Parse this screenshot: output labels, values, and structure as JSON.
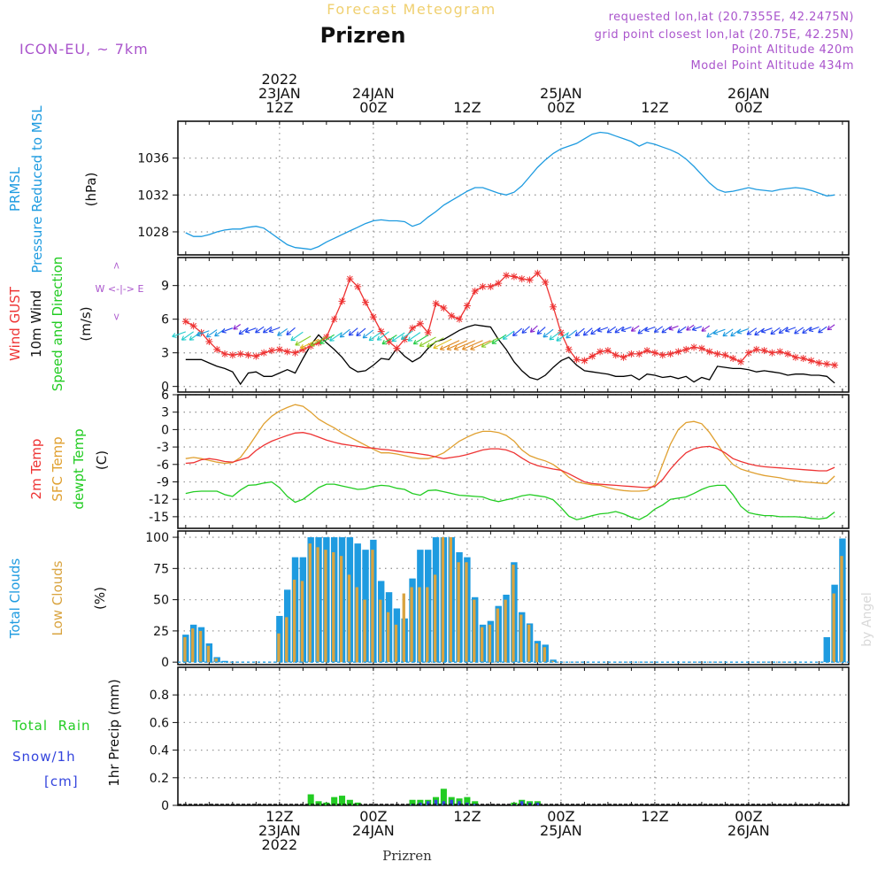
{
  "header": {
    "forecast_title": "Forecast Meteogram",
    "city": "Prizren",
    "model": "ICON-EU, ~ 7km",
    "requested": "requested lon,lat (20.7355E, 42.2475N)",
    "grid_point": "grid point closest lon,lat (20.75E, 42.25N)",
    "point_altitude": "Point Altitude 420m",
    "model_altitude": "Model Point Altitude 434m",
    "footer_city": "Prizren",
    "watermark": "by Angel"
  },
  "colors": {
    "pressure": "#1e9be0",
    "gust": "#ee3333",
    "wind": "#000000",
    "temp": "#ee3333",
    "sfc": "#e0a030",
    "dewpt": "#22cc22",
    "total_clouds": "#1e9be0",
    "low_clouds": "#d9a440",
    "rain": "#22cc22",
    "snow": "#3344dd",
    "purple": "#aa55cc"
  },
  "time_axis": {
    "top": [
      {
        "hour": 12,
        "lines": [
          "2022",
          "23JAN",
          "12Z"
        ]
      },
      {
        "hour": 24,
        "lines": [
          "24JAN",
          "00Z"
        ]
      },
      {
        "hour": 36,
        "lines": [
          "12Z"
        ]
      },
      {
        "hour": 48,
        "lines": [
          "25JAN",
          "00Z"
        ]
      },
      {
        "hour": 60,
        "lines": [
          "12Z"
        ]
      },
      {
        "hour": 72,
        "lines": [
          "26JAN",
          "00Z"
        ]
      }
    ],
    "bottom": [
      {
        "hour": 12,
        "lines": [
          "12Z",
          "23JAN",
          "2022"
        ]
      },
      {
        "hour": 24,
        "lines": [
          "00Z",
          "24JAN"
        ]
      },
      {
        "hour": 36,
        "lines": [
          "12Z"
        ]
      },
      {
        "hour": 48,
        "lines": [
          "00Z",
          "25JAN"
        ]
      },
      {
        "hour": 60,
        "lines": [
          "12Z"
        ]
      },
      {
        "hour": 72,
        "lines": [
          "00Z",
          "26JAN"
        ]
      }
    ]
  },
  "chart_data": [
    {
      "type": "line",
      "panel": "pressure",
      "labels": {
        "name1": "PRMSL",
        "name2": "Pressure Reduced to MSL",
        "unit": "(hPa)"
      },
      "x_start_hour": 0,
      "x_step_hours": 1,
      "ylim": [
        1025.5,
        1040
      ],
      "yticks": [
        1028,
        1032,
        1036
      ],
      "series": [
        {
          "values": [
            1027.9,
            1027.5,
            1027.5,
            1027.7,
            1028.0,
            1028.2,
            1028.3,
            1028.3,
            1028.5,
            1028.6,
            1028.4,
            1027.8,
            1027.2,
            1026.6,
            1026.3,
            1026.2,
            1026.1,
            1026.4,
            1026.9,
            1027.3,
            1027.7,
            1028.1,
            1028.5,
            1028.9,
            1029.2,
            1029.3,
            1029.2,
            1029.2,
            1029.1,
            1028.6,
            1028.9,
            1029.6,
            1030.2,
            1030.9,
            1031.4,
            1031.9,
            1032.4,
            1032.8,
            1032.8,
            1032.5,
            1032.2,
            1032.0,
            1032.3,
            1033.0,
            1034.0,
            1035.0,
            1035.8,
            1036.5,
            1037.0,
            1037.3,
            1037.6,
            1038.1,
            1038.6,
            1038.8,
            1038.7,
            1038.4,
            1038.1,
            1037.8,
            1037.3,
            1037.7,
            1037.5,
            1037.2,
            1036.9,
            1036.5,
            1035.9,
            1035.1,
            1034.2,
            1033.3,
            1032.6,
            1032.3,
            1032.4,
            1032.6,
            1032.8,
            1032.6,
            1032.5,
            1032.4,
            1032.6,
            1032.7,
            1032.8,
            1032.7,
            1032.5,
            1032.2,
            1031.9,
            1032.0
          ]
        }
      ]
    },
    {
      "type": "line",
      "panel": "wind",
      "labels": {
        "name1": "Wind GUST",
        "name2": "10m Wind",
        "name3": "Speed and Direction",
        "unit": "(m/s)",
        "compass": "N W <-|-> E S"
      },
      "x_start_hour": 0,
      "x_step_hours": 1,
      "ylim": [
        -0.5,
        11.5
      ],
      "yticks": [
        0,
        3,
        6,
        9
      ],
      "series": [
        {
          "name": "Wind GUST",
          "values": [
            5.8,
            5.4,
            4.8,
            4.0,
            3.3,
            2.9,
            2.8,
            2.9,
            2.8,
            2.7,
            3.0,
            3.2,
            3.3,
            3.1,
            3.0,
            3.3,
            3.6,
            3.9,
            4.4,
            6.0,
            7.6,
            9.6,
            8.9,
            7.5,
            6.2,
            4.9,
            4.0,
            3.4,
            4.2,
            5.2,
            5.6,
            4.8,
            7.4,
            7.0,
            6.3,
            6.0,
            7.2,
            8.5,
            8.9,
            8.9,
            9.2,
            9.9,
            9.8,
            9.6,
            9.5,
            10.1,
            9.3,
            7.1,
            4.8,
            3.3,
            2.4,
            2.3,
            2.7,
            3.1,
            3.2,
            2.8,
            2.6,
            2.9,
            2.9,
            3.2,
            3.0,
            2.8,
            2.9,
            3.1,
            3.3,
            3.5,
            3.4,
            3.1,
            2.9,
            2.8,
            2.5,
            2.2,
            3.0,
            3.3,
            3.2,
            3.0,
            3.1,
            2.9,
            2.6,
            2.5,
            2.3,
            2.1,
            2.0,
            1.9
          ]
        },
        {
          "name": "10m Wind",
          "values": [
            2.4,
            2.4,
            2.4,
            2.1,
            1.8,
            1.6,
            1.3,
            0.2,
            1.2,
            1.3,
            0.9,
            0.9,
            1.2,
            1.5,
            1.2,
            2.5,
            3.7,
            4.6,
            3.9,
            3.3,
            2.6,
            1.7,
            1.3,
            1.4,
            1.9,
            2.5,
            2.4,
            3.4,
            2.7,
            2.2,
            2.6,
            3.4,
            4.0,
            4.2,
            4.6,
            5.0,
            5.3,
            5.5,
            5.4,
            5.3,
            4.2,
            3.3,
            2.2,
            1.4,
            0.8,
            0.6,
            1.0,
            1.7,
            2.3,
            2.6,
            1.9,
            1.4,
            1.3,
            1.2,
            1.1,
            0.9,
            0.9,
            1.0,
            0.6,
            1.1,
            1.0,
            0.8,
            0.9,
            0.7,
            0.9,
            0.4,
            0.8,
            0.6,
            1.8,
            1.7,
            1.6,
            1.6,
            1.5,
            1.3,
            1.4,
            1.3,
            1.2,
            1.0,
            1.1,
            1.1,
            1.0,
            1.0,
            0.9,
            0.3
          ]
        }
      ]
    },
    {
      "type": "line",
      "panel": "temperature",
      "labels": {
        "name1": "2m Temp",
        "name2": "SFC Temp",
        "name3": "dewpt Temp",
        "unit": "(C)"
      },
      "x_start_hour": 0,
      "x_step_hours": 1,
      "ylim": [
        -17,
        6
      ],
      "yticks": [
        -15,
        -12,
        -9,
        -6,
        -3,
        0,
        3,
        6
      ],
      "series": [
        {
          "name": "2m Temp",
          "values": [
            -5.8,
            -5.7,
            -5.2,
            -5.0,
            -5.2,
            -5.5,
            -5.6,
            -5.2,
            -4.8,
            -3.6,
            -2.7,
            -2.0,
            -1.5,
            -1.0,
            -0.6,
            -0.5,
            -0.8,
            -1.3,
            -1.8,
            -2.2,
            -2.5,
            -2.7,
            -2.9,
            -3.1,
            -3.2,
            -3.4,
            -3.5,
            -3.7,
            -3.9,
            -4.0,
            -4.2,
            -4.4,
            -4.7,
            -5.0,
            -4.8,
            -4.6,
            -4.3,
            -3.9,
            -3.5,
            -3.3,
            -3.3,
            -3.5,
            -4.0,
            -4.9,
            -5.7,
            -6.2,
            -6.5,
            -6.8,
            -7.0,
            -7.6,
            -8.3,
            -9.0,
            -9.3,
            -9.4,
            -9.5,
            -9.6,
            -9.7,
            -9.8,
            -9.9,
            -10.0,
            -9.8,
            -8.6,
            -6.8,
            -5.3,
            -4.0,
            -3.3,
            -3.0,
            -2.9,
            -3.3,
            -4.0,
            -5.0,
            -5.5,
            -5.9,
            -6.2,
            -6.4,
            -6.5,
            -6.6,
            -6.7,
            -6.8,
            -6.9,
            -7.0,
            -7.1,
            -7.1,
            -6.5
          ]
        },
        {
          "name": "SFC Temp",
          "values": [
            -5.0,
            -4.8,
            -5.0,
            -5.3,
            -5.6,
            -5.8,
            -5.7,
            -4.8,
            -3.0,
            -1.0,
            1.0,
            2.3,
            3.2,
            3.8,
            4.3,
            4.0,
            3.0,
            1.8,
            1.0,
            0.3,
            -0.6,
            -1.3,
            -2.0,
            -2.7,
            -3.4,
            -4.0,
            -4.0,
            -4.2,
            -4.5,
            -4.8,
            -5.0,
            -5.0,
            -4.6,
            -4.0,
            -3.0,
            -2.0,
            -1.3,
            -0.7,
            -0.3,
            -0.3,
            -0.5,
            -1.0,
            -2.0,
            -3.5,
            -4.5,
            -5.0,
            -5.4,
            -6.0,
            -7.0,
            -8.2,
            -9.0,
            -9.3,
            -9.5,
            -9.6,
            -10.0,
            -10.3,
            -10.5,
            -10.6,
            -10.6,
            -10.5,
            -9.5,
            -6.0,
            -2.5,
            0.0,
            1.2,
            1.4,
            1.0,
            -0.5,
            -2.5,
            -4.5,
            -6.0,
            -6.8,
            -7.2,
            -7.6,
            -7.9,
            -8.1,
            -8.3,
            -8.6,
            -8.8,
            -9.0,
            -9.1,
            -9.2,
            -9.3,
            -8.0
          ]
        },
        {
          "name": "dewpt Temp",
          "values": [
            -11.0,
            -10.7,
            -10.6,
            -10.6,
            -10.6,
            -11.2,
            -11.5,
            -10.4,
            -9.6,
            -9.5,
            -9.2,
            -9.0,
            -10.0,
            -11.5,
            -12.5,
            -12.0,
            -11.0,
            -10.0,
            -9.4,
            -9.4,
            -9.7,
            -10.0,
            -10.3,
            -10.2,
            -9.8,
            -9.6,
            -9.7,
            -10.1,
            -10.3,
            -11.0,
            -11.3,
            -10.5,
            -10.4,
            -10.7,
            -11.0,
            -11.3,
            -11.4,
            -11.5,
            -11.6,
            -12.1,
            -12.4,
            -12.1,
            -11.8,
            -11.4,
            -11.2,
            -11.4,
            -11.6,
            -12.1,
            -13.4,
            -14.9,
            -15.5,
            -15.2,
            -14.8,
            -14.5,
            -14.4,
            -14.1,
            -14.5,
            -15.1,
            -15.5,
            -14.8,
            -13.7,
            -13.0,
            -12.0,
            -11.8,
            -11.6,
            -11.0,
            -10.3,
            -9.8,
            -9.6,
            -9.6,
            -11.2,
            -13.2,
            -14.3,
            -14.6,
            -14.8,
            -14.8,
            -15.0,
            -15.0,
            -15.0,
            -15.1,
            -15.3,
            -15.4,
            -15.2,
            -14.2
          ]
        }
      ]
    },
    {
      "type": "bar",
      "panel": "clouds",
      "labels": {
        "name1": "Total Clouds",
        "name2": "Low Clouds",
        "unit": "(%)"
      },
      "x_start_hour": 0,
      "x_step_hours": 1,
      "ylim": [
        -2,
        105
      ],
      "yticks": [
        0,
        25,
        50,
        75,
        100
      ],
      "series": [
        {
          "name": "Total Clouds",
          "values": [
            22,
            30,
            28,
            15,
            4,
            1,
            0,
            0,
            0,
            0,
            0,
            0,
            37,
            58,
            84,
            84,
            100,
            100,
            100,
            100,
            100,
            100,
            95,
            90,
            98,
            65,
            56,
            43,
            35,
            67,
            90,
            90,
            100,
            100,
            100,
            88,
            84,
            52,
            30,
            33,
            45,
            54,
            80,
            40,
            31,
            17,
            14,
            2,
            0,
            0,
            0,
            0,
            0,
            0,
            0,
            0,
            0,
            0,
            0,
            0,
            0,
            0,
            0,
            0,
            0,
            0,
            0,
            0,
            0,
            0,
            0,
            0,
            0,
            0,
            0,
            0,
            0,
            0,
            0,
            0,
            0,
            0,
            20,
            62,
            99
          ]
        },
        {
          "name": "Low Clouds",
          "values": [
            20,
            27,
            25,
            13,
            3,
            0,
            0,
            0,
            0,
            0,
            0,
            0,
            23,
            36,
            66,
            65,
            95,
            92,
            90,
            88,
            85,
            70,
            60,
            50,
            90,
            50,
            40,
            30,
            55,
            60,
            60,
            60,
            70,
            100,
            100,
            80,
            80,
            50,
            28,
            30,
            43,
            50,
            78,
            38,
            30,
            15,
            12,
            1,
            0,
            0,
            0,
            0,
            0,
            0,
            0,
            0,
            0,
            0,
            0,
            0,
            0,
            0,
            0,
            0,
            0,
            0,
            0,
            0,
            0,
            0,
            0,
            0,
            0,
            0,
            0,
            0,
            0,
            0,
            0,
            0,
            0,
            0,
            0,
            55,
            85
          ]
        }
      ]
    },
    {
      "type": "bar",
      "panel": "precip",
      "labels": {
        "left1": "Total  Rain",
        "left2": "Snow/1h",
        "left3": "[cm]",
        "unit": "1hr Precip (mm)"
      },
      "x_start_hour": 0,
      "x_step_hours": 1,
      "ylim": [
        0,
        1.0
      ],
      "yticks": [
        0,
        0.2,
        0.4,
        0.6,
        0.8
      ],
      "series": [
        {
          "name": "Total Rain",
          "values": [
            0,
            0,
            0,
            0,
            0,
            0,
            0,
            0,
            0,
            0,
            0,
            0,
            0,
            0,
            0,
            0,
            0.08,
            0.03,
            0.02,
            0.06,
            0.07,
            0.04,
            0.02,
            0,
            0,
            0,
            0,
            0,
            0,
            0.04,
            0.04,
            0.04,
            0.06,
            0.12,
            0.06,
            0.05,
            0.06,
            0.03,
            0,
            0,
            0,
            0,
            0.02,
            0.04,
            0.03,
            0.03,
            0,
            0,
            0,
            0,
            0,
            0,
            0,
            0,
            0,
            0,
            0,
            0,
            0,
            0,
            0,
            0,
            0,
            0,
            0,
            0,
            0,
            0,
            0,
            0,
            0,
            0,
            0,
            0,
            0,
            0,
            0,
            0,
            0,
            0,
            0,
            0,
            0,
            0
          ]
        },
        {
          "name": "Snow/1h",
          "values": [
            0,
            0,
            0,
            0,
            0,
            0,
            0,
            0,
            0,
            0,
            0,
            0,
            0,
            0,
            0,
            0,
            0,
            0,
            0,
            0,
            0,
            0,
            0,
            0,
            0,
            0,
            0,
            0,
            0,
            0.01,
            0.02,
            0.03,
            0.04,
            0.03,
            0.04,
            0.03,
            0.02,
            0.01,
            0,
            0,
            0,
            0,
            0.01,
            0.03,
            0.02,
            0.02,
            0,
            0,
            0,
            0,
            0,
            0,
            0,
            0,
            0,
            0,
            0,
            0,
            0,
            0,
            0,
            0,
            0,
            0,
            0,
            0,
            0,
            0,
            0,
            0,
            0,
            0,
            0,
            0,
            0,
            0,
            0,
            0,
            0,
            0,
            0,
            0,
            0,
            0
          ]
        }
      ]
    }
  ]
}
